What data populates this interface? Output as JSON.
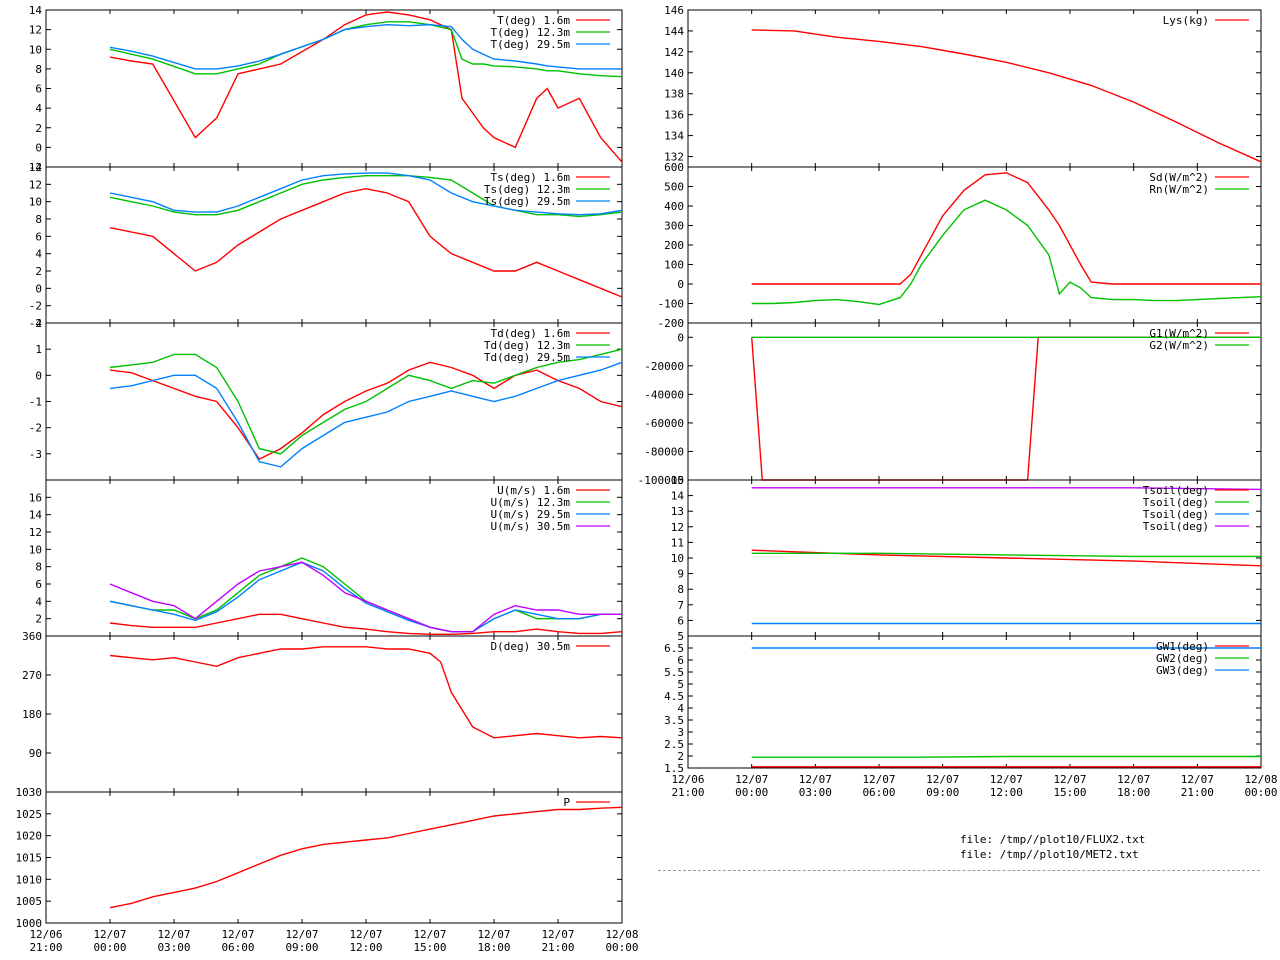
{
  "colors": {
    "red": "#ff0000",
    "green": "#00c000",
    "blue": "#0080ff",
    "purple": "#c000ff"
  },
  "files": [
    "file: /tmp//plot10/FLUX2.txt",
    "file: /tmp//plot10/MET2.txt"
  ],
  "time_axis": {
    "x_tick_labels": [
      [
        "12/06",
        "21:00"
      ],
      [
        "12/07",
        "00:00"
      ],
      [
        "12/07",
        "03:00"
      ],
      [
        "12/07",
        "06:00"
      ],
      [
        "12/07",
        "09:00"
      ],
      [
        "12/07",
        "12:00"
      ],
      [
        "12/07",
        "15:00"
      ],
      [
        "12/07",
        "18:00"
      ],
      [
        "12/07",
        "21:00"
      ],
      [
        "12/08",
        "00:00"
      ]
    ]
  },
  "chart_data": [
    {
      "id": "air-temp",
      "type": "line",
      "column": "left",
      "x": [
        0,
        1,
        2,
        4,
        5,
        6,
        7,
        8,
        10,
        11,
        12,
        13,
        14,
        15,
        16,
        16.5,
        17,
        17.5,
        18,
        19,
        20,
        20.5,
        21,
        22,
        23,
        24
      ],
      "ylim": [
        -2,
        14
      ],
      "y_ticks": [
        "14",
        "12",
        "10",
        "8",
        "6",
        "4",
        "2",
        "0",
        "-2"
      ],
      "series": [
        {
          "name": "T(deg)  1.6m",
          "color": "#ff0000",
          "values": [
            9.2,
            8.8,
            8.5,
            1,
            3,
            7.5,
            8,
            8.5,
            11,
            12.5,
            13.5,
            13.8,
            13.5,
            13,
            12,
            5,
            3.5,
            2,
            1,
            0,
            5,
            6,
            4,
            5,
            1,
            -1.5
          ]
        },
        {
          "name": "T(deg) 12.3m",
          "color": "#00c000",
          "values": [
            10,
            9.5,
            9,
            7.5,
            7.5,
            8,
            8.5,
            9.5,
            11,
            12,
            12.5,
            12.8,
            12.8,
            12.5,
            12,
            9,
            8.5,
            8.5,
            8.3,
            8.2,
            8,
            7.8,
            7.8,
            7.5,
            7.3,
            7.2
          ]
        },
        {
          "name": "T(deg) 29.5m",
          "color": "#0080ff",
          "values": [
            10.2,
            9.8,
            9.3,
            8,
            8,
            8.3,
            8.8,
            9.5,
            11,
            12,
            12.3,
            12.5,
            12.4,
            12.5,
            12.3,
            11,
            10,
            9.5,
            9,
            8.8,
            8.5,
            8.3,
            8.2,
            8,
            8,
            8
          ]
        }
      ]
    },
    {
      "id": "surface-temp",
      "type": "line",
      "column": "left",
      "x": [
        0,
        1,
        2,
        3,
        4,
        5,
        6,
        7,
        8,
        9,
        10,
        11,
        12,
        13,
        14,
        15,
        16,
        17,
        18,
        19,
        20,
        21,
        22,
        23,
        24
      ],
      "ylim": [
        -4,
        14
      ],
      "y_ticks": [
        "14",
        "12",
        "10",
        "8",
        "6",
        "4",
        "2",
        "0",
        "-2",
        "-4"
      ],
      "series": [
        {
          "name": "Ts(deg)  1.6m",
          "color": "#ff0000",
          "values": [
            7,
            6.5,
            6,
            4,
            2,
            3,
            5,
            6.5,
            8,
            9,
            10,
            11,
            11.5,
            11,
            10,
            6,
            4,
            3,
            2,
            2,
            3,
            2,
            1,
            0,
            -1
          ]
        },
        {
          "name": "Ts(deg) 12.3m",
          "color": "#00c000",
          "values": [
            10.5,
            10,
            9.5,
            8.8,
            8.5,
            8.5,
            9,
            10,
            11,
            12,
            12.5,
            12.8,
            13,
            13,
            13,
            12.8,
            12.5,
            11,
            9.5,
            9,
            8.5,
            8.5,
            8.3,
            8.5,
            8.8
          ]
        },
        {
          "name": "Ts(deg) 29.5m",
          "color": "#0080ff",
          "values": [
            11,
            10.5,
            10,
            9,
            8.8,
            8.8,
            9.5,
            10.5,
            11.5,
            12.5,
            13,
            13.2,
            13.3,
            13.3,
            13,
            12.5,
            11,
            10,
            9.5,
            9,
            8.8,
            8.6,
            8.5,
            8.6,
            9
          ]
        }
      ]
    },
    {
      "id": "dewpoint",
      "type": "line",
      "column": "left",
      "x": [
        0,
        1,
        2,
        3,
        4,
        5,
        6,
        7,
        8,
        9,
        10,
        11,
        12,
        13,
        14,
        15,
        16,
        17,
        18,
        19,
        20,
        21,
        22,
        23,
        24
      ],
      "ylim": [
        -4,
        2
      ],
      "y_ticks": [
        "2",
        "1",
        "0",
        "-1",
        "-2",
        "-3"
      ],
      "series": [
        {
          "name": "Td(deg)  1.6m",
          "color": "#ff0000",
          "values": [
            0.2,
            0.1,
            -0.2,
            -0.5,
            -0.8,
            -1,
            -2,
            -3.2,
            -2.8,
            -2.2,
            -1.5,
            -1,
            -0.6,
            -0.3,
            0.2,
            0.5,
            0.3,
            0,
            -0.5,
            0,
            0.2,
            -0.2,
            -0.5,
            -1,
            -1.2
          ]
        },
        {
          "name": "Td(deg) 12.3m",
          "color": "#00c000",
          "values": [
            0.3,
            0.4,
            0.5,
            0.8,
            0.8,
            0.3,
            -1,
            -2.8,
            -3,
            -2.3,
            -1.8,
            -1.3,
            -1,
            -0.5,
            0,
            -0.2,
            -0.5,
            -0.2,
            -0.3,
            0,
            0.3,
            0.5,
            0.6,
            0.8,
            1
          ]
        },
        {
          "name": "Td(deg) 29.5m",
          "color": "#0080ff",
          "values": [
            -0.5,
            -0.4,
            -0.2,
            0,
            0,
            -0.5,
            -1.8,
            -3.3,
            -3.5,
            -2.8,
            -2.3,
            -1.8,
            -1.6,
            -1.4,
            -1,
            -0.8,
            -0.6,
            -0.8,
            -1,
            -0.8,
            -0.5,
            -0.2,
            0,
            0.2,
            0.5
          ]
        }
      ]
    },
    {
      "id": "wind-speed",
      "type": "line",
      "column": "left",
      "x": [
        0,
        1,
        2,
        3,
        4,
        5,
        6,
        7,
        8,
        9,
        10,
        11,
        12,
        13,
        14,
        15,
        16,
        17,
        18,
        19,
        20,
        21,
        22,
        23,
        24
      ],
      "ylim": [
        0,
        18
      ],
      "y_ticks": [
        "16",
        "14",
        "12",
        "10",
        "8",
        "6",
        "4",
        "2"
      ],
      "series": [
        {
          "name": "U(m/s)  1.6m",
          "color": "#ff0000",
          "values": [
            1.5,
            1.2,
            1,
            1,
            1,
            1.5,
            2,
            2.5,
            2.5,
            2,
            1.5,
            1,
            0.8,
            0.5,
            0.3,
            0.2,
            0.2,
            0.3,
            0.5,
            0.5,
            0.8,
            0.5,
            0.3,
            0.3,
            0.5
          ]
        },
        {
          "name": "U(m/s) 12.3m",
          "color": "#00c000",
          "values": [
            4,
            3.5,
            3,
            3,
            2,
            3,
            5,
            7,
            8,
            9,
            8,
            6,
            4,
            3,
            2,
            1,
            0.5,
            0.5,
            2,
            3,
            2,
            2,
            2,
            2.5,
            2.5
          ]
        },
        {
          "name": "U(m/s) 29.5m",
          "color": "#0080ff",
          "values": [
            4,
            3.5,
            3,
            2.5,
            1.8,
            2.8,
            4.5,
            6.5,
            7.5,
            8.5,
            7.5,
            5.5,
            3.8,
            2.8,
            1.8,
            1,
            0.5,
            0.5,
            2,
            3,
            2.5,
            2,
            2,
            2.5,
            2.5
          ]
        },
        {
          "name": "U(m/s) 30.5m",
          "color": "#c000ff",
          "values": [
            6,
            5,
            4,
            3.5,
            2,
            4,
            6,
            7.5,
            8,
            8.5,
            7,
            5,
            4,
            3,
            2,
            1,
            0.5,
            0.5,
            2.5,
            3.5,
            3,
            3,
            2.5,
            2.5,
            2.5
          ]
        }
      ]
    },
    {
      "id": "wind-direction",
      "type": "line",
      "column": "left",
      "x": [
        0,
        1,
        2,
        3,
        4,
        5,
        6,
        7,
        8,
        9,
        10,
        11,
        12,
        13,
        14,
        15,
        15.5,
        16,
        17,
        18,
        19,
        20,
        21,
        22,
        23,
        24
      ],
      "ylim": [
        0,
        360
      ],
      "y_ticks": [
        "360",
        "270",
        "180",
        "90"
      ],
      "series": [
        {
          "name": "D(deg)  30.5m",
          "color": "#ff0000",
          "values": [
            315,
            310,
            305,
            310,
            300,
            290,
            310,
            320,
            330,
            330,
            335,
            335,
            335,
            330,
            330,
            320,
            300,
            230,
            150,
            125,
            130,
            135,
            130,
            125,
            128,
            125
          ]
        }
      ]
    },
    {
      "id": "pressure",
      "type": "line",
      "column": "left",
      "x": [
        0,
        1,
        2,
        3,
        4,
        5,
        6,
        7,
        8,
        9,
        10,
        11,
        12,
        13,
        14,
        15,
        16,
        17,
        18,
        19,
        20,
        21,
        22,
        23,
        24
      ],
      "ylim": [
        1000,
        1030
      ],
      "y_ticks": [
        "1030",
        "1025",
        "1020",
        "1015",
        "1010",
        "1005",
        "1000"
      ],
      "series": [
        {
          "name": "P",
          "color": "#ff0000",
          "values": [
            1003.5,
            1004.5,
            1006,
            1007,
            1008,
            1009.5,
            1011.5,
            1013.5,
            1015.5,
            1017,
            1018,
            1018.5,
            1019,
            1019.5,
            1020.5,
            1021.5,
            1022.5,
            1023.5,
            1024.5,
            1025,
            1025.5,
            1026,
            1026,
            1026.3,
            1026.5
          ]
        }
      ]
    },
    {
      "id": "lysimeter",
      "type": "line",
      "column": "right",
      "x": [
        0,
        2,
        4,
        6,
        8,
        10,
        12,
        14,
        16,
        18,
        20,
        22,
        24
      ],
      "ylim": [
        131,
        146
      ],
      "y_ticks": [
        "146",
        "144",
        "142",
        "140",
        "138",
        "136",
        "134",
        "132"
      ],
      "series": [
        {
          "name": "Lys(kg)",
          "color": "#ff0000",
          "values": [
            144.1,
            144,
            143.4,
            143,
            142.5,
            141.8,
            141,
            140,
            138.8,
            137.2,
            135.3,
            133.3,
            131.5
          ]
        }
      ]
    },
    {
      "id": "radiation",
      "type": "line",
      "column": "right",
      "x": [
        0,
        1,
        2,
        3,
        4,
        5,
        6,
        7,
        7.5,
        8,
        9,
        10,
        11,
        12,
        13,
        14,
        14.5,
        15,
        15.5,
        16,
        17,
        18,
        19,
        20,
        21,
        22,
        23,
        24
      ],
      "ylim": [
        -200,
        600
      ],
      "y_ticks": [
        "600",
        "500",
        "400",
        "300",
        "200",
        "100",
        "0",
        "-100",
        "-200"
      ],
      "series": [
        {
          "name": "Sd(W/m^2)",
          "color": "#ff0000",
          "values": [
            0,
            0,
            0,
            0,
            0,
            0,
            0,
            0,
            50,
            150,
            350,
            480,
            560,
            570,
            520,
            380,
            300,
            200,
            100,
            10,
            0,
            0,
            0,
            0,
            0,
            0,
            0,
            0
          ]
        },
        {
          "name": "Rn(W/m^2)",
          "color": "#00c000",
          "values": [
            -100,
            -100,
            -95,
            -85,
            -80,
            -90,
            -105,
            -70,
            0,
            100,
            250,
            380,
            430,
            380,
            300,
            150,
            -50,
            10,
            -20,
            -70,
            -80,
            -80,
            -85,
            -85,
            -80,
            -75,
            -70,
            -65
          ]
        }
      ]
    },
    {
      "id": "ground-flux",
      "type": "line",
      "column": "right",
      "x": [
        0,
        0.5,
        13,
        13.5,
        24
      ],
      "ylim": [
        -100000,
        10000
      ],
      "y_ticks": [
        "0",
        "-20000",
        "-40000",
        "-60000",
        "-80000",
        "-100000"
      ],
      "series": [
        {
          "name": "G1(W/m^2)",
          "color": "#ff0000",
          "values": [
            0,
            -100000,
            -100000,
            0,
            0
          ]
        },
        {
          "name": "G2(W/m^2)",
          "color": "#00c000",
          "values": [
            0,
            0,
            0,
            0,
            0
          ]
        }
      ]
    },
    {
      "id": "soil-temp",
      "type": "line",
      "column": "right",
      "x": [
        0,
        6,
        12,
        18,
        24
      ],
      "ylim": [
        5,
        15
      ],
      "y_ticks": [
        "15",
        "14",
        "13",
        "12",
        "11",
        "10",
        "9",
        "8",
        "7",
        "6",
        "5"
      ],
      "series": [
        {
          "name": "Tsoil(deg)",
          "color": "#ff0000",
          "values": [
            10.5,
            10.2,
            10,
            9.8,
            9.5
          ]
        },
        {
          "name": "Tsoil(deg)",
          "color": "#00c000",
          "values": [
            10.3,
            10.3,
            10.2,
            10.1,
            10.1
          ]
        },
        {
          "name": "Tsoil(deg)",
          "color": "#0080ff",
          "values": [
            5.8,
            5.8,
            5.8,
            5.8,
            5.8
          ]
        },
        {
          "name": "Tsoil(deg)",
          "color": "#c000ff",
          "values": [
            14.5,
            14.5,
            14.5,
            14.5,
            14.4
          ]
        }
      ]
    },
    {
      "id": "groundwater",
      "type": "line",
      "column": "right",
      "x": [
        0,
        8,
        12,
        24
      ],
      "ylim": [
        1.5,
        7
      ],
      "y_ticks": [
        "6.5",
        "6",
        "5.5",
        "5",
        "4.5",
        "4",
        "3.5",
        "3",
        "2.5",
        "2",
        "1.5"
      ],
      "series": [
        {
          "name": "GW1(deg)",
          "color": "#ff0000",
          "values": [
            1.55,
            1.55,
            1.55,
            1.55
          ]
        },
        {
          "name": "GW2(deg)",
          "color": "#00c000",
          "values": [
            1.95,
            1.95,
            1.98,
            1.98
          ]
        },
        {
          "name": "GW3(deg)",
          "color": "#0080ff",
          "values": [
            6.5,
            6.5,
            6.5,
            6.5
          ]
        }
      ]
    }
  ]
}
